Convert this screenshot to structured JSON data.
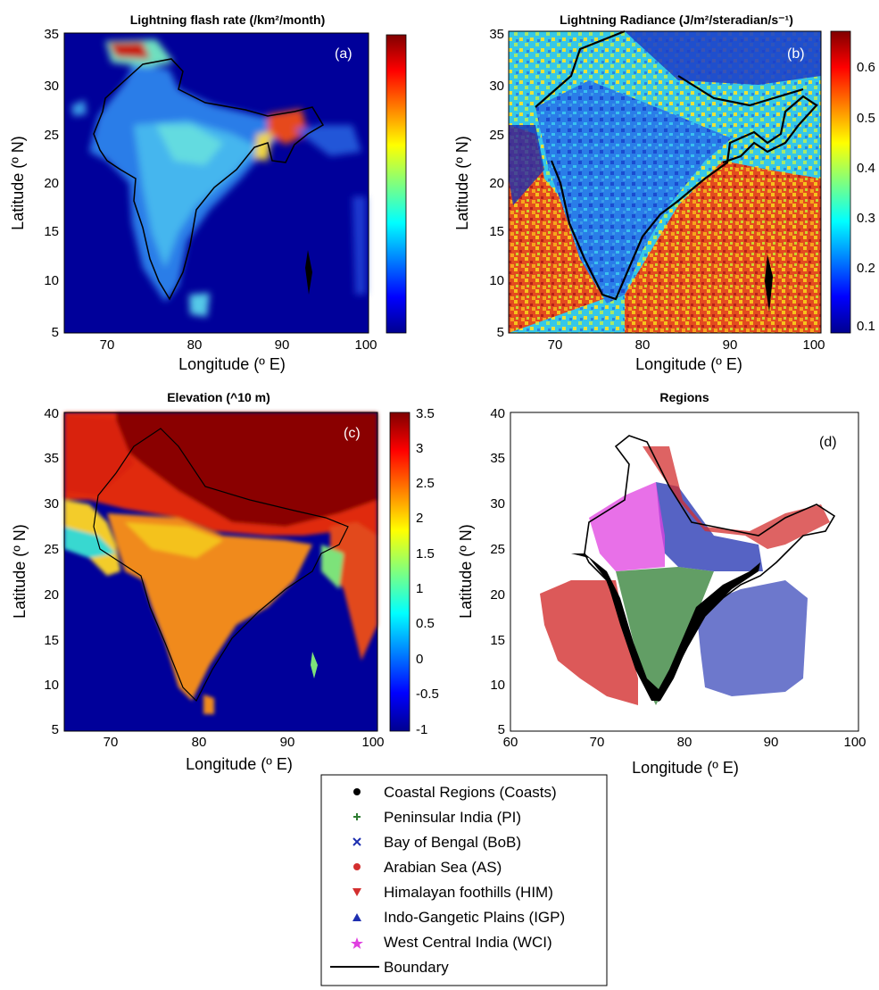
{
  "panels": {
    "a": {
      "title": "Lightning flash rate (/km²/month)",
      "label": "(a)",
      "xlabel": "Longitude (º E)",
      "ylabel": "Latitude (º N)",
      "xticks": [
        "70",
        "80",
        "90",
        "100"
      ],
      "yticks": [
        "35",
        "30",
        "25",
        "20",
        "15",
        "10",
        "5"
      ],
      "colorbar_ticks": []
    },
    "b": {
      "title": "Lightning Radiance (J/m²/steradian/s⁻¹)",
      "label": "(b)",
      "xlabel": "Longitude (º E)",
      "ylabel": "Latitude (º N)",
      "xticks": [
        "70",
        "80",
        "90",
        "100"
      ],
      "yticks": [
        "35",
        "30",
        "25",
        "20",
        "15",
        "10",
        "5"
      ],
      "colorbar_ticks": [
        "0.6",
        "0.5",
        "0.4",
        "0.3",
        "0.2",
        "0.1"
      ]
    },
    "c": {
      "title": "Elevation (^10 m)",
      "label": "(c)",
      "xlabel": "Longitude (º E)",
      "ylabel": "Latitude (º N)",
      "xticks": [
        "70",
        "80",
        "90",
        "100"
      ],
      "yticks": [
        "40",
        "35",
        "30",
        "25",
        "20",
        "15",
        "10",
        "5"
      ],
      "colorbar_ticks": [
        "3.5",
        "3",
        "2.5",
        "2",
        "1.5",
        "1",
        "0.5",
        "0",
        "-0.5",
        "-1"
      ]
    },
    "d": {
      "title": "Regions",
      "label": "(d)",
      "xlabel": "Longitude (º E)",
      "ylabel": "Latitude (º N)",
      "xticks": [
        "60",
        "70",
        "80",
        "90",
        "100"
      ],
      "yticks": [
        "40",
        "35",
        "30",
        "25",
        "20",
        "15",
        "10",
        "5"
      ]
    }
  },
  "legend": [
    {
      "marker": "circle",
      "color": "#000000",
      "label": "Coastal Regions (Coasts)"
    },
    {
      "marker": "plus",
      "color": "#2e7d32",
      "label": "Peninsular India (PI)"
    },
    {
      "marker": "x",
      "color": "#1e2fb0",
      "label": "Bay of Bengal (BoB)"
    },
    {
      "marker": "circle",
      "color": "#d32f2f",
      "label": "Arabian Sea (AS)"
    },
    {
      "marker": "triangle-down",
      "color": "#d32f2f",
      "label": "Himalayan foothills (HIM)"
    },
    {
      "marker": "triangle-up",
      "color": "#1e2fb0",
      "label": "Indo-Gangetic Plains (IGP)"
    },
    {
      "marker": "star",
      "color": "#e040e0",
      "label": "West Central India (WCI)"
    },
    {
      "marker": "line",
      "color": "#000000",
      "label": "Boundary"
    }
  ]
}
